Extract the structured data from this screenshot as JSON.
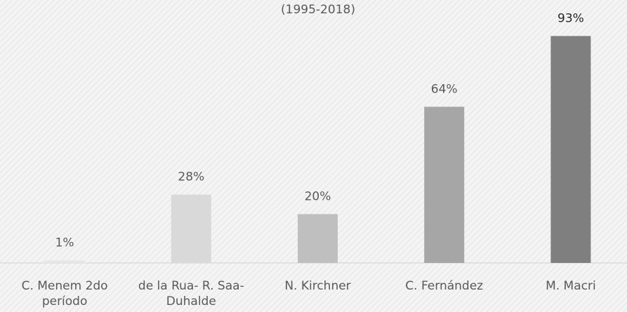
{
  "chart_data": {
    "type": "bar",
    "title": "(1995-2018)",
    "categories": [
      "C. Menem 2do período",
      "de la Rua- R. Saa- Duhalde",
      "N. Kirchner",
      "C. Fernández",
      "M. Macri"
    ],
    "values": [
      1,
      28,
      20,
      64,
      93
    ],
    "value_labels": [
      "1%",
      "28%",
      "20%",
      "64%",
      "93%"
    ],
    "colors": [
      "#e6e6e6",
      "#d9d9d9",
      "#bfbfbf",
      "#a6a6a6",
      "#7f7f7f"
    ],
    "ylim": [
      0,
      100
    ]
  }
}
